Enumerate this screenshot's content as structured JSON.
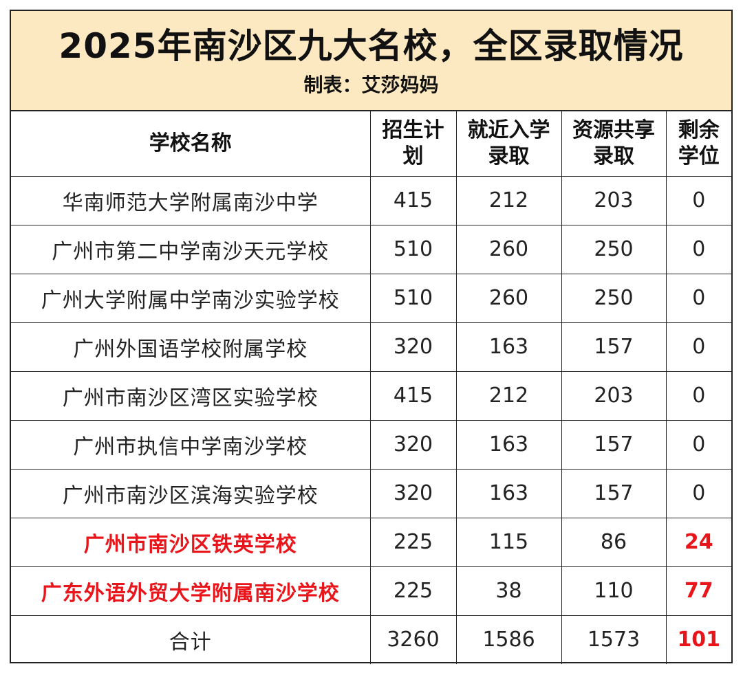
{
  "title": "2025年南沙区九大名校，全区录取情况",
  "subtitle": "制表：艾莎妈妈",
  "headers": {
    "name": "学校名称",
    "plan": "招生计划",
    "nearby": "就近入学录取",
    "shared": "资源共享录取",
    "remaining": "剩余学位"
  },
  "rows": [
    {
      "name": "华南师范大学附属南沙中学",
      "plan": "415",
      "nearby": "212",
      "shared": "203",
      "remaining": "0"
    },
    {
      "name": "广州市第二中学南沙天元学校",
      "plan": "510",
      "nearby": "260",
      "shared": "250",
      "remaining": "0"
    },
    {
      "name": "广州大学附属中学南沙实验学校",
      "plan": "510",
      "nearby": "260",
      "shared": "250",
      "remaining": "0"
    },
    {
      "name": "广州外国语学校附属学校",
      "plan": "320",
      "nearby": "163",
      "shared": "157",
      "remaining": "0"
    },
    {
      "name": "广州市南沙区湾区实验学校",
      "plan": "415",
      "nearby": "212",
      "shared": "203",
      "remaining": "0"
    },
    {
      "name": "广州市执信中学南沙学校",
      "plan": "320",
      "nearby": "163",
      "shared": "157",
      "remaining": "0"
    },
    {
      "name": "广州市南沙区滨海实验学校",
      "plan": "320",
      "nearby": "163",
      "shared": "157",
      "remaining": "0"
    },
    {
      "name": "广州市南沙区铁英学校",
      "plan": "225",
      "nearby": "115",
      "shared": "86",
      "remaining": "24"
    },
    {
      "name": "广东外语外贸大学附属南沙学校",
      "plan": "225",
      "nearby": "38",
      "shared": "110",
      "remaining": "77"
    }
  ],
  "total": {
    "name": "合计",
    "plan": "3260",
    "nearby": "1586",
    "shared": "1573",
    "remaining": "101"
  },
  "colors": {
    "header_bg": "#fde9c1",
    "highlight": "#e8151b",
    "border": "#222222"
  }
}
